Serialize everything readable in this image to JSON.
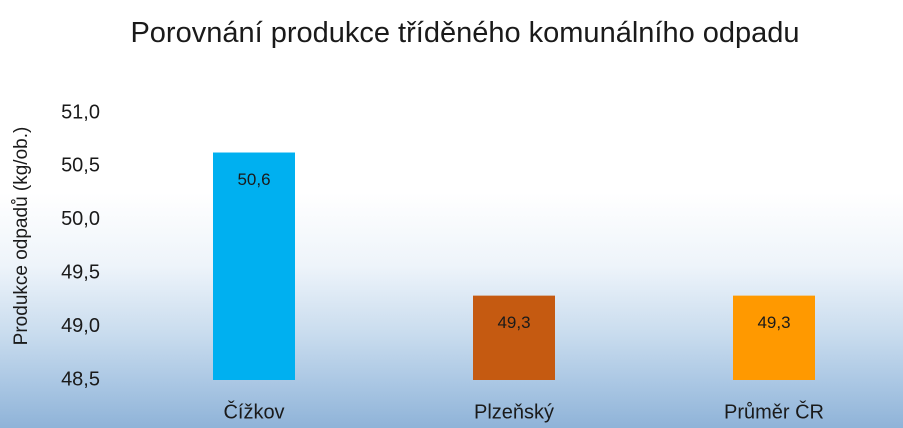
{
  "chart_data": {
    "type": "bar",
    "title": "Porovnání produkce tříděného komunálního odpadu",
    "ylabel": "Produkce odpadů (kg/ob.)",
    "categories": [
      "Čížkov",
      "Plzeňský",
      "Průměr ČR"
    ],
    "values": [
      50.63,
      49.29,
      49.29
    ],
    "value_labels": [
      "50,6",
      "49,3",
      "49,3"
    ],
    "colors": [
      "#00b0f0",
      "#c55a11",
      "#ff9900"
    ],
    "ylim": [
      48.5,
      51.0
    ],
    "yticks": [
      {
        "value": 48.5,
        "label": "48,5"
      },
      {
        "value": 49.0,
        "label": "49,0"
      },
      {
        "value": 49.5,
        "label": "49,5"
      },
      {
        "value": 50.0,
        "label": "50,0"
      },
      {
        "value": 50.5,
        "label": "50,5"
      },
      {
        "value": 51.0,
        "label": "51,0"
      }
    ],
    "grid": false
  }
}
